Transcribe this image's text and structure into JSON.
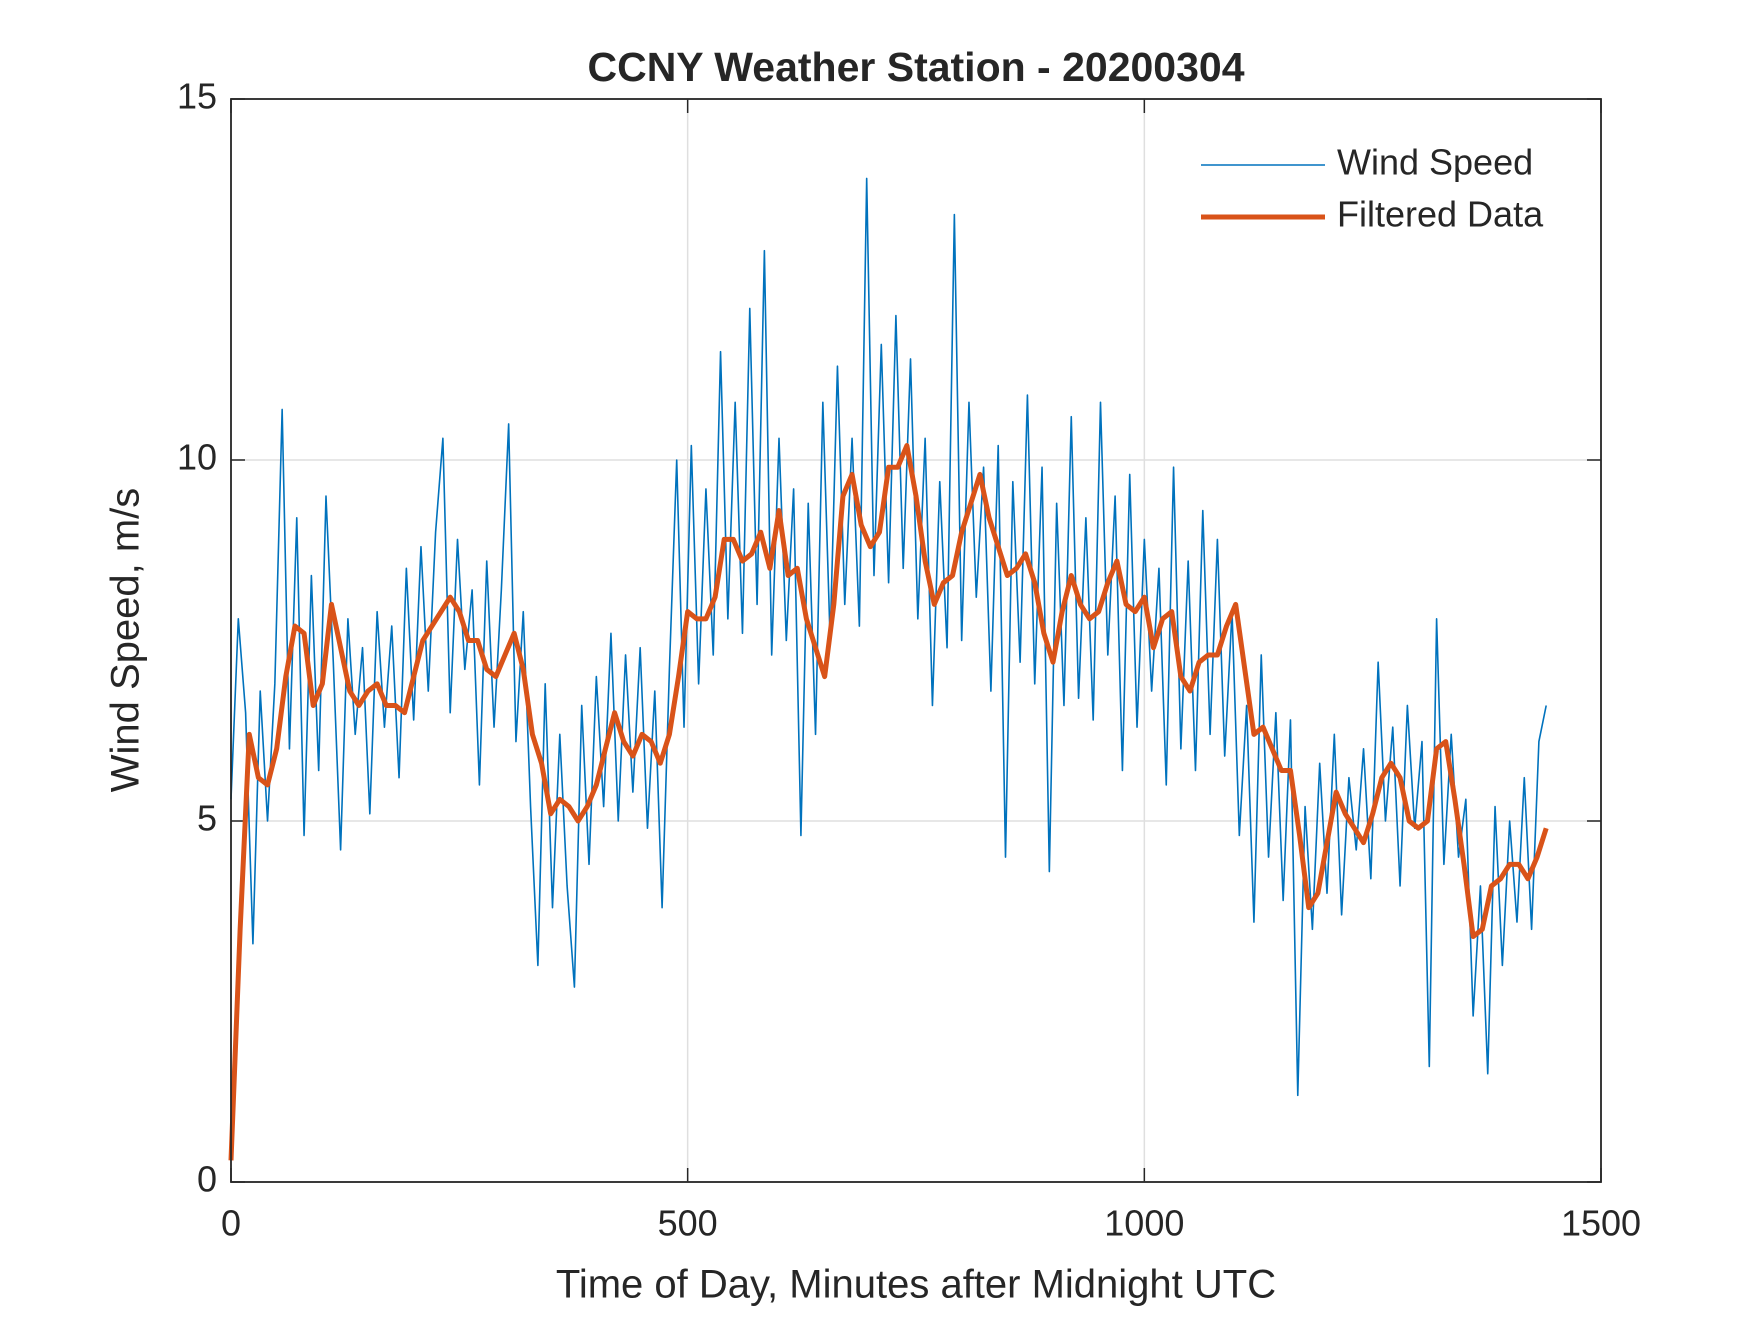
{
  "chart_data": {
    "type": "line",
    "title": "CCNY Weather Station - 20200304",
    "xlabel": "Time of Day, Minutes after Midnight UTC",
    "ylabel": "Wind Speed, m/s",
    "xlim": [
      0,
      1500
    ],
    "xticks": [
      0,
      500,
      1000,
      1500
    ],
    "ylim": [
      0,
      15
    ],
    "yticks": [
      0,
      5,
      10,
      15
    ],
    "grid": true,
    "legend": "northeast",
    "series": [
      {
        "name": "Wind Speed",
        "color": "#0072bd",
        "x": [
          0,
          8,
          16,
          24,
          32,
          40,
          48,
          56,
          64,
          72,
          80,
          88,
          96,
          104,
          112,
          120,
          128,
          136,
          144,
          152,
          160,
          168,
          176,
          184,
          192,
          200,
          208,
          216,
          224,
          232,
          240,
          248,
          256,
          264,
          272,
          280,
          288,
          296,
          304,
          312,
          320,
          328,
          336,
          344,
          352,
          360,
          368,
          376,
          384,
          392,
          400,
          408,
          416,
          424,
          432,
          440,
          448,
          456,
          464,
          472,
          480,
          488,
          496,
          504,
          512,
          520,
          528,
          536,
          544,
          552,
          560,
          568,
          576,
          584,
          592,
          600,
          608,
          616,
          624,
          632,
          640,
          648,
          656,
          664,
          672,
          680,
          688,
          696,
          704,
          712,
          720,
          728,
          736,
          744,
          752,
          760,
          768,
          776,
          784,
          792,
          800,
          808,
          816,
          824,
          832,
          840,
          848,
          856,
          864,
          872,
          880,
          888,
          896,
          904,
          912,
          920,
          928,
          936,
          944,
          952,
          960,
          968,
          976,
          984,
          992,
          1000,
          1008,
          1016,
          1024,
          1032,
          1040,
          1048,
          1056,
          1064,
          1072,
          1080,
          1088,
          1096,
          1104,
          1112,
          1120,
          1128,
          1136,
          1144,
          1152,
          1160,
          1168,
          1176,
          1184,
          1192,
          1200,
          1208,
          1216,
          1224,
          1232,
          1240,
          1248,
          1256,
          1264,
          1272,
          1280,
          1288,
          1296,
          1304,
          1312,
          1320,
          1328,
          1336,
          1344,
          1352,
          1360,
          1368,
          1376,
          1384,
          1392,
          1400,
          1408,
          1416,
          1424,
          1432,
          1440
        ],
        "values": [
          5.3,
          7.8,
          6.5,
          3.3,
          6.8,
          5.0,
          6.9,
          10.7,
          6.0,
          9.2,
          4.8,
          8.4,
          5.7,
          9.5,
          7.2,
          4.6,
          7.8,
          6.2,
          7.4,
          5.1,
          7.9,
          6.3,
          7.7,
          5.6,
          8.5,
          6.4,
          8.8,
          6.8,
          9.0,
          10.3,
          6.5,
          8.9,
          7.1,
          8.2,
          5.5,
          8.6,
          6.3,
          8.2,
          10.5,
          6.1,
          7.9,
          5.2,
          3.0,
          6.9,
          3.8,
          6.2,
          4.1,
          2.7,
          6.6,
          4.4,
          7.0,
          5.2,
          7.6,
          5.0,
          7.3,
          5.4,
          7.4,
          4.9,
          6.8,
          3.8,
          7.1,
          10.0,
          6.3,
          10.2,
          6.9,
          9.6,
          7.3,
          11.5,
          7.8,
          10.8,
          7.6,
          12.1,
          8.0,
          12.9,
          7.3,
          10.3,
          7.5,
          9.6,
          4.8,
          9.4,
          6.2,
          10.8,
          7.5,
          11.3,
          8.0,
          10.3,
          7.7,
          13.9,
          8.4,
          11.6,
          8.3,
          12.0,
          8.5,
          11.4,
          7.8,
          10.3,
          6.6,
          9.7,
          7.4,
          13.4,
          7.5,
          10.8,
          8.1,
          9.9,
          6.8,
          10.2,
          4.5,
          9.7,
          7.2,
          10.9,
          6.9,
          9.9,
          4.3,
          9.4,
          6.6,
          10.6,
          6.7,
          9.2,
          6.4,
          10.8,
          7.3,
          9.5,
          5.7,
          9.8,
          6.3,
          8.9,
          6.8,
          8.5,
          5.5,
          9.9,
          6.0,
          8.6,
          5.7,
          9.3,
          6.2,
          8.9,
          5.9,
          7.9,
          4.8,
          6.6,
          3.6,
          7.3,
          4.5,
          6.5,
          3.9,
          6.4,
          1.2,
          5.2,
          3.5,
          5.8,
          4.0,
          6.2,
          3.7,
          5.6,
          4.6,
          6.0,
          4.2,
          7.2,
          5.0,
          6.3,
          4.1,
          6.6,
          4.9,
          6.1,
          1.6,
          7.8,
          4.4,
          6.2,
          4.5,
          5.3,
          2.3,
          4.1,
          1.5,
          5.2,
          3.0,
          5.0,
          3.6,
          5.6,
          3.5,
          6.1,
          6.6
        ]
      },
      {
        "name": "Filtered Data",
        "color": "#d95319",
        "x": [
          0,
          10,
          20,
          30,
          40,
          50,
          60,
          70,
          80,
          90,
          100,
          110,
          120,
          130,
          140,
          150,
          160,
          170,
          180,
          190,
          200,
          210,
          220,
          230,
          240,
          250,
          260,
          270,
          280,
          290,
          300,
          310,
          320,
          330,
          340,
          350,
          360,
          370,
          380,
          390,
          400,
          410,
          420,
          430,
          440,
          450,
          460,
          470,
          480,
          490,
          500,
          510,
          520,
          530,
          540,
          550,
          560,
          570,
          580,
          590,
          600,
          610,
          620,
          630,
          640,
          650,
          660,
          670,
          680,
          690,
          700,
          710,
          720,
          730,
          740,
          750,
          760,
          770,
          780,
          790,
          800,
          810,
          820,
          830,
          840,
          850,
          860,
          870,
          880,
          890,
          900,
          910,
          920,
          930,
          940,
          950,
          960,
          970,
          980,
          990,
          1000,
          1010,
          1020,
          1030,
          1040,
          1050,
          1060,
          1070,
          1080,
          1090,
          1100,
          1110,
          1120,
          1130,
          1140,
          1150,
          1160,
          1170,
          1180,
          1190,
          1200,
          1210,
          1220,
          1230,
          1240,
          1250,
          1260,
          1270,
          1280,
          1290,
          1300,
          1310,
          1320,
          1330,
          1340,
          1350,
          1360,
          1370,
          1380,
          1390,
          1400,
          1410,
          1420,
          1430,
          1440
        ],
        "values": [
          0.3,
          3.5,
          6.2,
          5.6,
          5.5,
          6.0,
          7.0,
          7.7,
          7.6,
          6.6,
          6.9,
          8.0,
          7.4,
          6.8,
          6.6,
          6.8,
          6.9,
          6.6,
          6.6,
          6.5,
          7.0,
          7.5,
          7.7,
          7.9,
          8.1,
          7.9,
          7.5,
          7.5,
          7.1,
          7.0,
          7.3,
          7.6,
          7.1,
          6.2,
          5.8,
          5.1,
          5.3,
          5.2,
          5.0,
          5.2,
          5.5,
          6.0,
          6.5,
          6.1,
          5.9,
          6.2,
          6.1,
          5.8,
          6.2,
          7.0,
          7.9,
          7.8,
          7.8,
          8.1,
          8.9,
          8.9,
          8.6,
          8.7,
          9.0,
          8.5,
          9.3,
          8.4,
          8.5,
          7.8,
          7.4,
          7.0,
          8.0,
          9.5,
          9.8,
          9.1,
          8.8,
          9.0,
          9.9,
          9.9,
          10.2,
          9.5,
          8.6,
          8.0,
          8.3,
          8.4,
          9.0,
          9.4,
          9.8,
          9.2,
          8.8,
          8.4,
          8.5,
          8.7,
          8.3,
          7.6,
          7.2,
          7.9,
          8.4,
          8.0,
          7.8,
          7.9,
          8.3,
          8.6,
          8.0,
          7.9,
          8.1,
          7.4,
          7.8,
          7.9,
          7.0,
          6.8,
          7.2,
          7.3,
          7.3,
          7.7,
          8.0,
          7.1,
          6.2,
          6.3,
          6.0,
          5.7,
          5.7,
          4.8,
          3.8,
          4.0,
          4.7,
          5.4,
          5.1,
          4.9,
          4.7,
          5.1,
          5.6,
          5.8,
          5.6,
          5.0,
          4.9,
          5.0,
          6.0,
          6.1,
          5.3,
          4.4,
          3.4,
          3.5,
          4.1,
          4.2,
          4.4,
          4.4,
          4.2,
          4.5,
          4.9
        ]
      }
    ]
  }
}
